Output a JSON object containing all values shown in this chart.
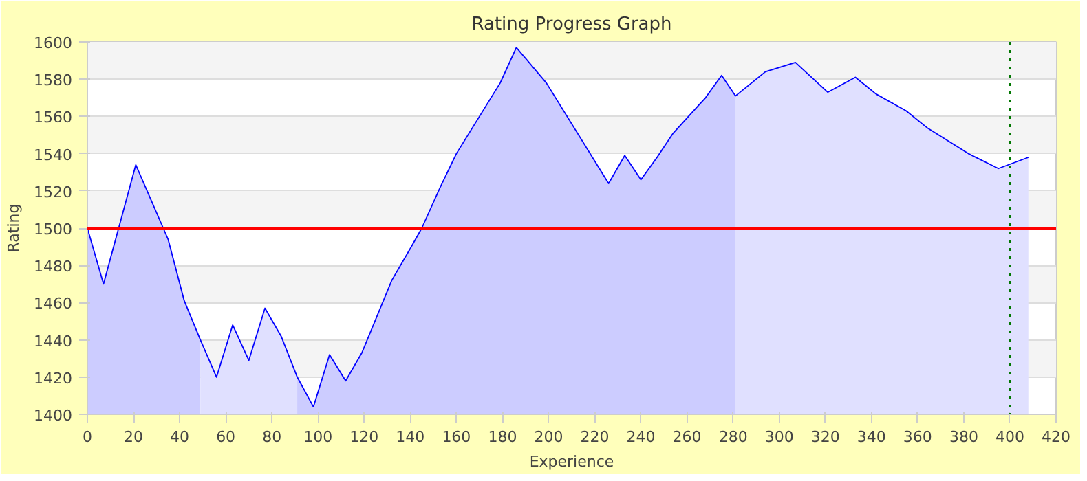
{
  "chart_data": {
    "type": "area",
    "title": "Rating Progress Graph",
    "xlabel": "Experience",
    "ylabel": "Rating",
    "xlim": [
      0,
      420
    ],
    "xticks": [
      0,
      20,
      40,
      60,
      80,
      100,
      120,
      140,
      160,
      180,
      200,
      220,
      240,
      260,
      280,
      300,
      320,
      340,
      360,
      380,
      400,
      420
    ],
    "ylim": [
      1400,
      1600
    ],
    "yticks": [
      1400,
      1420,
      1440,
      1460,
      1480,
      1500,
      1520,
      1540,
      1560,
      1580,
      1600
    ],
    "grid": "y",
    "series": [
      {
        "type": "line",
        "color": "#0000ff",
        "x": [
          0,
          7,
          21,
          35,
          42,
          49,
          56,
          63,
          70,
          77,
          84,
          91,
          98,
          105,
          112,
          119,
          132,
          140,
          145,
          153,
          160,
          179,
          186,
          199,
          226,
          233,
          240,
          247,
          254,
          268,
          275,
          281,
          294,
          307,
          321,
          333,
          342,
          355,
          364,
          382,
          395,
          408
        ],
        "values": [
          1500,
          1470,
          1534,
          1494,
          1461,
          1440,
          1420,
          1448,
          1429,
          1457,
          1442,
          1420,
          1404,
          1432,
          1418,
          1433,
          1472,
          1489,
          1500,
          1522,
          1540,
          1578,
          1597,
          1578,
          1524,
          1539,
          1526,
          1538,
          1551,
          1570,
          1582,
          1571,
          1584,
          1589,
          1573,
          1581,
          1572,
          1563,
          1554,
          1540,
          1532,
          1538
        ]
      },
      {
        "color": "#ccccff",
        "x": [
          0,
          7,
          21,
          35,
          42,
          49
        ],
        "values": [
          1500,
          1470,
          1534,
          1494,
          1461,
          1440
        ]
      },
      {
        "color": "#e0e0ff",
        "x": [
          49,
          56,
          63,
          70,
          77,
          84,
          91
        ],
        "values": [
          1440,
          1420,
          1448,
          1429,
          1457,
          1442,
          1420
        ]
      },
      {
        "color": "#ccccff",
        "x": [
          91,
          98,
          105,
          112,
          119,
          132,
          140,
          145,
          153,
          160,
          179,
          186,
          199,
          226,
          233,
          240,
          247,
          254,
          268,
          275,
          281
        ],
        "values": [
          1420,
          1404,
          1432,
          1418,
          1433,
          1472,
          1489,
          1500,
          1522,
          1540,
          1578,
          1597,
          1578,
          1524,
          1539,
          1526,
          1538,
          1551,
          1570,
          1582,
          1571
        ]
      },
      {
        "color": "#e0e0ff",
        "x": [
          281,
          294,
          307,
          321,
          333,
          342,
          355,
          364,
          382,
          395,
          408
        ],
        "values": [
          1571,
          1584,
          1589,
          1573,
          1581,
          1572,
          1563,
          1554,
          1540,
          1532,
          1538
        ]
      }
    ],
    "ref_lines": [
      {
        "axis": "y",
        "value": 1500,
        "color": "#ff0000"
      },
      {
        "axis": "x",
        "value": 400,
        "color": "#007700",
        "line_style": "dotted"
      }
    ]
  }
}
